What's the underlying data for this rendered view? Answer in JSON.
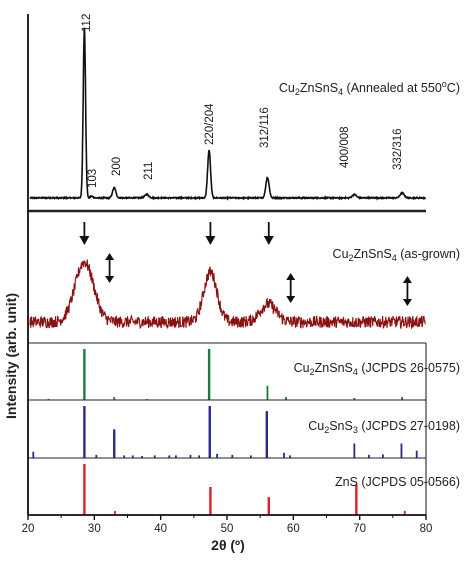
{
  "chart_data": {
    "type": "line",
    "xlabel": "2θ (º)",
    "ylabel": "Intensity (arb. unit)",
    "xlim": [
      20,
      80
    ],
    "x_ticks": [
      20,
      30,
      40,
      50,
      60,
      70,
      80
    ],
    "panels": [
      {
        "id": "annealed",
        "label_parts": [
          "Cu",
          "2",
          "ZnSnS",
          "4",
          " (Annealed at 550",
          "o",
          "C)"
        ],
        "color": "#111111",
        "baseline": 0.03,
        "peaks": [
          {
            "x": 28.5,
            "h": 1.0,
            "w": 0.18,
            "label": "112"
          },
          {
            "x": 33.0,
            "h": 0.06,
            "w": 0.25,
            "label": "200"
          },
          {
            "x": 29.6,
            "h": 0.01,
            "w": 0.2,
            "label": "103"
          },
          {
            "x": 37.9,
            "h": 0.02,
            "w": 0.3,
            "label": "211"
          },
          {
            "x": 47.3,
            "h": 0.28,
            "w": 0.22,
            "label": "220/204"
          },
          {
            "x": 56.1,
            "h": 0.12,
            "w": 0.25,
            "label": "312/116"
          },
          {
            "x": 69.2,
            "h": 0.02,
            "w": 0.3,
            "label": "400/008"
          },
          {
            "x": 76.4,
            "h": 0.03,
            "w": 0.3,
            "label": "332/316"
          }
        ]
      },
      {
        "id": "as-grown",
        "label_parts": [
          "Cu",
          "2",
          "ZnSnS",
          "4",
          " (as-grown)"
        ],
        "color": "#8b1010",
        "baseline": 0.18,
        "noise": 0.06,
        "peaks": [
          {
            "x": 28.5,
            "h": 0.6,
            "w": 1.4
          },
          {
            "x": 47.5,
            "h": 0.5,
            "w": 1.0
          },
          {
            "x": 56.2,
            "h": 0.18,
            "w": 1.2
          }
        ],
        "single_arrows": [
          28.5,
          47.5,
          56.3
        ],
        "double_arrows": [
          32.3,
          59.6,
          77.2
        ]
      },
      {
        "id": "czts-ref",
        "label_parts": [
          "Cu",
          "2",
          "ZnSnS",
          "4",
          " (JCPDS 26-0575)"
        ],
        "color": "#1e7a3a",
        "sticks": [
          [
            28.5,
            1.0
          ],
          [
            33.0,
            0.06
          ],
          [
            47.3,
            1.0
          ],
          [
            56.1,
            0.28
          ],
          [
            58.9,
            0.06
          ],
          [
            69.2,
            0.04
          ],
          [
            76.4,
            0.06
          ],
          [
            37.9,
            0.02
          ],
          [
            23.1,
            0.02
          ]
        ]
      },
      {
        "id": "cts-ref",
        "label_parts": [
          "Cu",
          "2",
          "SnS",
          "3",
          " (JCPDS 27-0198)"
        ],
        "color": "#2a2a8c",
        "sticks": [
          [
            20.8,
            0.12
          ],
          [
            28.5,
            1.0
          ],
          [
            30.3,
            0.06
          ],
          [
            33.0,
            0.55
          ],
          [
            34.5,
            0.05
          ],
          [
            35.8,
            0.05
          ],
          [
            37.2,
            0.04
          ],
          [
            39.1,
            0.05
          ],
          [
            41.3,
            0.05
          ],
          [
            42.3,
            0.05
          ],
          [
            44.5,
            0.06
          ],
          [
            45.8,
            0.05
          ],
          [
            47.4,
            1.0
          ],
          [
            48.5,
            0.08
          ],
          [
            50.8,
            0.06
          ],
          [
            53.6,
            0.05
          ],
          [
            56.0,
            0.9
          ],
          [
            58.6,
            0.1
          ],
          [
            59.5,
            0.05
          ],
          [
            69.2,
            0.28
          ],
          [
            71.4,
            0.06
          ],
          [
            73.5,
            0.07
          ],
          [
            76.3,
            0.28
          ],
          [
            78.6,
            0.14
          ]
        ]
      },
      {
        "id": "zns-ref",
        "label_parts": [
          "ZnS (JCPDS 05-0566)"
        ],
        "color": "#e02020",
        "sticks": [
          [
            28.5,
            1.0
          ],
          [
            33.1,
            0.08
          ],
          [
            47.5,
            0.55
          ],
          [
            56.3,
            0.35
          ],
          [
            69.5,
            0.6
          ],
          [
            76.8,
            0.08
          ]
        ]
      }
    ]
  }
}
